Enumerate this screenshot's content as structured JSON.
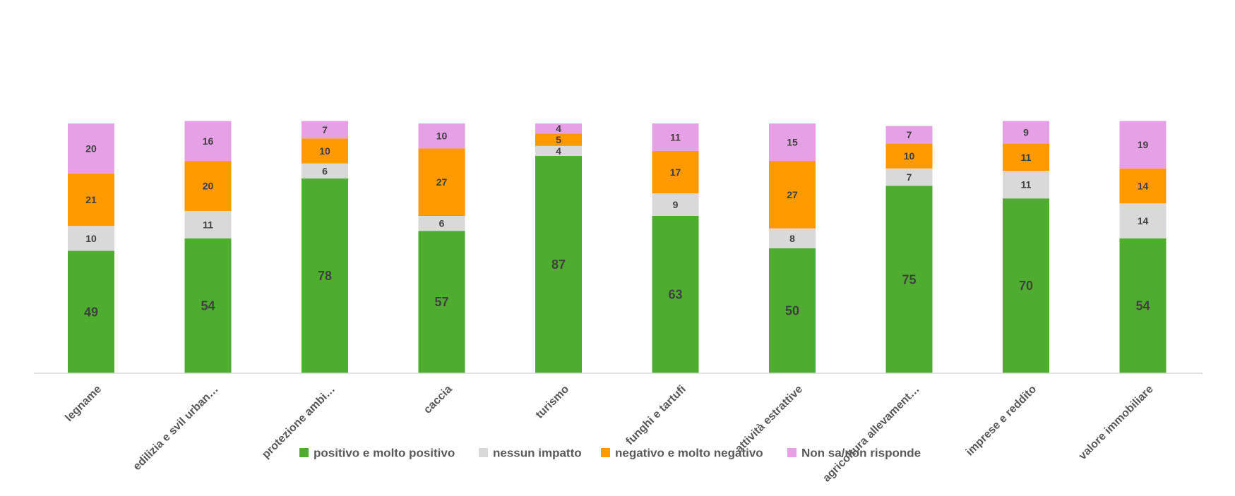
{
  "chart_data": {
    "type": "bar",
    "stacked": true,
    "categories": [
      "legname",
      "edilizia e svil urban…",
      "protezione ambi…",
      "caccia",
      "turismo",
      "funghi e tartufi",
      "attività estrattive",
      "agricoltura allevament…",
      "imprese e reddito",
      "valore immobiliare"
    ],
    "series": [
      {
        "name": "positivo e molto positivo",
        "color": "#4ead2f",
        "values": [
          49,
          54,
          78,
          57,
          87,
          63,
          50,
          75,
          70,
          54
        ]
      },
      {
        "name": "nessun impatto",
        "color": "#d9d9d9",
        "values": [
          10,
          11,
          6,
          6,
          4,
          9,
          8,
          7,
          11,
          14
        ]
      },
      {
        "name": "negativo e molto negativo",
        "color": "#ff9900",
        "values": [
          21,
          20,
          10,
          27,
          5,
          17,
          27,
          10,
          11,
          14
        ]
      },
      {
        "name": "Non sa/non risponde",
        "color": "#e6a0e6",
        "values": [
          20,
          16,
          7,
          10,
          4,
          11,
          15,
          7,
          9,
          19
        ]
      }
    ],
    "ylim": [
      0,
      100
    ],
    "grid": false,
    "legend_position": "bottom",
    "title": "",
    "xlabel": "",
    "ylabel": ""
  }
}
